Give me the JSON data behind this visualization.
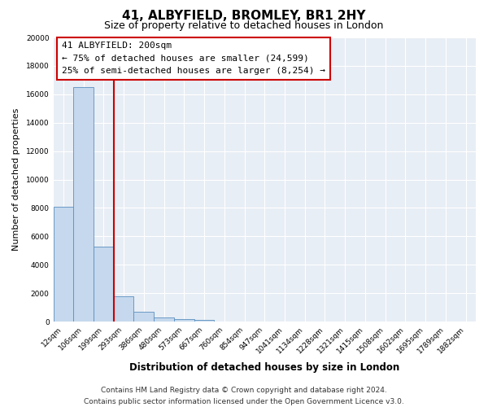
{
  "title": "41, ALBYFIELD, BROMLEY, BR1 2HY",
  "subtitle": "Size of property relative to detached houses in London",
  "xlabel": "Distribution of detached houses by size in London",
  "ylabel": "Number of detached properties",
  "categories": [
    "12sqm",
    "106sqm",
    "199sqm",
    "293sqm",
    "386sqm",
    "480sqm",
    "573sqm",
    "667sqm",
    "760sqm",
    "854sqm",
    "947sqm",
    "1041sqm",
    "1134sqm",
    "1228sqm",
    "1321sqm",
    "1415sqm",
    "1508sqm",
    "1602sqm",
    "1695sqm",
    "1789sqm",
    "1882sqm"
  ],
  "values": [
    8100,
    16500,
    5300,
    1800,
    700,
    300,
    200,
    150,
    0,
    0,
    0,
    0,
    0,
    0,
    0,
    0,
    0,
    0,
    0,
    0,
    0
  ],
  "bar_color": "#c5d8ed",
  "bar_edge_color": "#5a8fc0",
  "vline_color": "#cc0000",
  "vline_x": 2.5,
  "ylim": [
    0,
    20000
  ],
  "yticks": [
    0,
    2000,
    4000,
    6000,
    8000,
    10000,
    12000,
    14000,
    16000,
    18000,
    20000
  ],
  "annotation_title": "41 ALBYFIELD: 200sqm",
  "annotation_line1": "← 75% of detached houses are smaller (24,599)",
  "annotation_line2": "25% of semi-detached houses are larger (8,254) →",
  "footer_line1": "Contains HM Land Registry data © Crown copyright and database right 2024.",
  "footer_line2": "Contains public sector information licensed under the Open Government Licence v3.0.",
  "bg_color": "#e8eef5",
  "grid_color": "#ffffff",
  "title_fontsize": 11,
  "subtitle_fontsize": 9,
  "axis_label_fontsize": 8,
  "tick_fontsize": 6.5,
  "annotation_fontsize": 8,
  "footer_fontsize": 6.5
}
